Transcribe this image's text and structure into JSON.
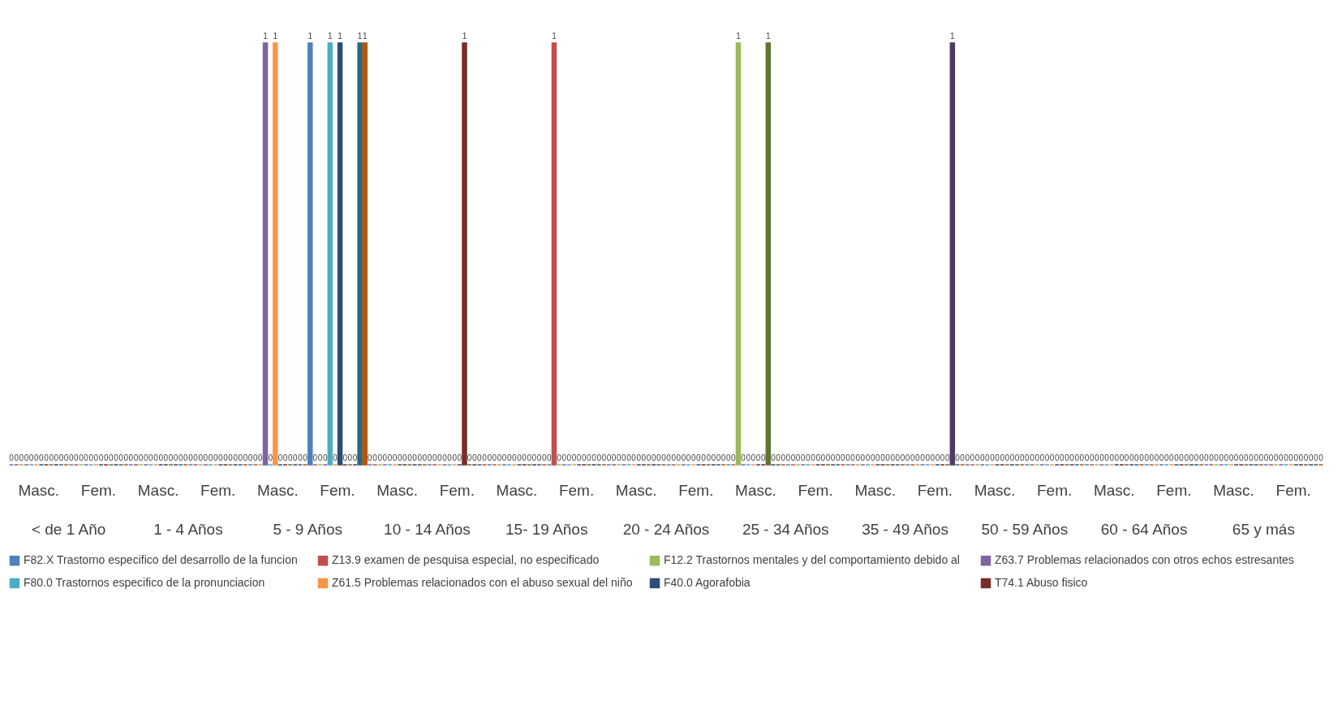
{
  "chart_data": {
    "type": "bar",
    "categories": [
      "Masc.",
      "Fem.",
      "Masc.",
      "Fem.",
      "Masc.",
      "Fem.",
      "Masc.",
      "Fem.",
      "Masc.",
      "Fem.",
      "Masc.",
      "Fem.",
      "Masc.",
      "Fem.",
      "Masc.",
      "Fem.",
      "Masc.",
      "Fem.",
      "Masc.",
      "Fem.",
      "Masc.",
      "Fem."
    ],
    "annotations": [
      "< de 1 Año",
      "1 - 4 Años",
      "5 - 9 Años",
      "10 - 14 Años",
      "15- 19 Años",
      "20 - 24 Años",
      "25 - 34 Años",
      "35 - 49 Años",
      "50 - 59 Años",
      "60 - 64 Años",
      "65 y más"
    ],
    "series": [
      {
        "name": "F82.X  Trastorno especifico del desarrollo de la funcion",
        "color": "#4f81bd",
        "values": [
          0,
          0,
          0,
          0,
          0,
          1,
          0,
          0,
          0,
          0,
          0,
          0,
          0,
          0,
          0,
          0,
          0,
          0,
          0,
          0,
          0,
          0
        ]
      },
      {
        "name": "Z13.9 examen de pesquisa especial, no especificado",
        "color": "#c0504d",
        "values": [
          0,
          0,
          0,
          0,
          0,
          0,
          0,
          0,
          0,
          1,
          0,
          0,
          0,
          0,
          0,
          0,
          0,
          0,
          0,
          0,
          0,
          0
        ]
      },
      {
        "name": "F12.2  Trastornos mentales y del comportamiento debido al",
        "color": "#9bbb59",
        "values": [
          0,
          0,
          0,
          0,
          0,
          0,
          0,
          0,
          0,
          0,
          0,
          0,
          1,
          0,
          0,
          0,
          0,
          0,
          0,
          0,
          0,
          0
        ]
      },
      {
        "name": "Z63.7 Problemas relacionados con otros echos estresantes",
        "color": "#8064a2",
        "values": [
          0,
          0,
          0,
          0,
          1,
          0,
          0,
          0,
          0,
          0,
          0,
          0,
          0,
          0,
          0,
          0,
          0,
          0,
          0,
          0,
          0,
          0
        ]
      },
      {
        "name": "F80.0  Trastornos especifico de la pronunciacion",
        "color": "#4bacc6",
        "values": [
          0,
          0,
          0,
          0,
          0,
          1,
          0,
          0,
          0,
          0,
          0,
          0,
          0,
          0,
          0,
          0,
          0,
          0,
          0,
          0,
          0,
          0
        ]
      },
      {
        "name": "Z61.5 Problemas relacionados con el abuso sexual del niño",
        "color": "#f79646",
        "values": [
          0,
          0,
          0,
          0,
          1,
          0,
          0,
          0,
          0,
          0,
          0,
          0,
          0,
          0,
          0,
          0,
          0,
          0,
          0,
          0,
          0,
          0
        ]
      },
      {
        "name": "F40.0  Agorafobia",
        "color": "#2c4d75",
        "values": [
          0,
          0,
          0,
          0,
          0,
          1,
          0,
          0,
          0,
          0,
          0,
          0,
          0,
          0,
          0,
          0,
          0,
          0,
          0,
          0,
          0,
          0
        ]
      },
      {
        "name": "T74.1  Abuso fisico",
        "color": "#772c2a",
        "values": [
          0,
          0,
          0,
          0,
          0,
          0,
          0,
          1,
          0,
          0,
          0,
          0,
          0,
          0,
          0,
          0,
          0,
          0,
          0,
          0,
          0,
          0
        ]
      },
      {
        "color": "#5f7530",
        "values": [
          0,
          0,
          0,
          0,
          0,
          0,
          0,
          0,
          0,
          0,
          0,
          0,
          1,
          0,
          0,
          0,
          0,
          0,
          0,
          0,
          0,
          0
        ]
      },
      {
        "color": "#4d3b62",
        "values": [
          0,
          0,
          0,
          0,
          0,
          0,
          0,
          0,
          0,
          0,
          0,
          0,
          0,
          0,
          0,
          1,
          0,
          0,
          0,
          0,
          0,
          0
        ]
      },
      {
        "color": "#276a7c",
        "values": [
          0,
          0,
          0,
          0,
          0,
          1,
          0,
          0,
          0,
          0,
          0,
          0,
          0,
          0,
          0,
          0,
          0,
          0,
          0,
          0,
          0,
          0
        ]
      },
      {
        "color": "#b65708",
        "values": [
          0,
          0,
          0,
          0,
          0,
          1,
          0,
          0,
          0,
          0,
          0,
          0,
          0,
          0,
          0,
          0,
          0,
          0,
          0,
          0,
          0,
          0
        ]
      }
    ],
    "data_labels": true,
    "legend": "bottom"
  }
}
